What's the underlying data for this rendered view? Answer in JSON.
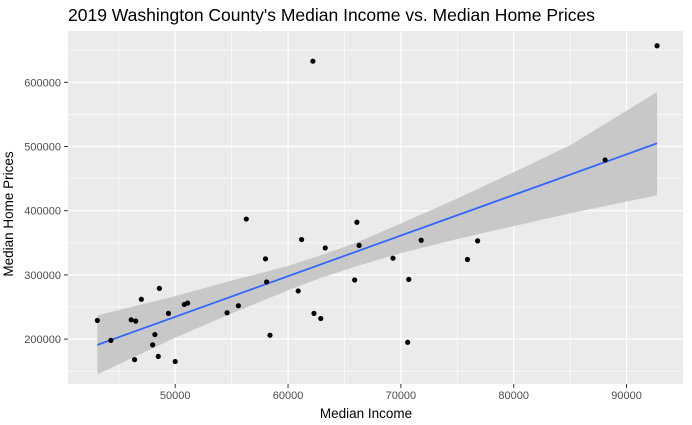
{
  "chart_data": {
    "type": "scatter",
    "title": "2019 Washington County's Median Income vs. Median Home Prices",
    "xlabel": "Median Income",
    "ylabel": "Median Home Prices",
    "xlim": [
      40500,
      95000
    ],
    "ylim": [
      130000,
      680000
    ],
    "x_ticks": [
      50000,
      60000,
      70000,
      80000,
      90000
    ],
    "x_tick_labels": [
      "50000",
      "60000",
      "70000",
      "80000",
      "90000"
    ],
    "y_ticks": [
      200000,
      300000,
      400000,
      500000,
      600000
    ],
    "y_tick_labels": [
      "200000",
      "300000",
      "400000",
      "500000",
      "600000"
    ],
    "grid": true,
    "legend": "none",
    "colors": {
      "panel_background": "#ebebeb",
      "grid_major": "#ffffff",
      "points": "#000000",
      "fit_line": "#3366ff",
      "confidence_band": "#c4c4c4"
    },
    "points": [
      {
        "x": 43100,
        "y": 229000
      },
      {
        "x": 44300,
        "y": 198000
      },
      {
        "x": 46100,
        "y": 230000
      },
      {
        "x": 46500,
        "y": 228000
      },
      {
        "x": 46400,
        "y": 168000
      },
      {
        "x": 47000,
        "y": 262000
      },
      {
        "x": 48000,
        "y": 191000
      },
      {
        "x": 48200,
        "y": 207000
      },
      {
        "x": 48500,
        "y": 173000
      },
      {
        "x": 48600,
        "y": 279000
      },
      {
        "x": 49400,
        "y": 240000
      },
      {
        "x": 50000,
        "y": 165000
      },
      {
        "x": 50800,
        "y": 254000
      },
      {
        "x": 51100,
        "y": 256000
      },
      {
        "x": 54600,
        "y": 241000
      },
      {
        "x": 55600,
        "y": 252000
      },
      {
        "x": 56300,
        "y": 387000
      },
      {
        "x": 58000,
        "y": 325000
      },
      {
        "x": 58100,
        "y": 289000
      },
      {
        "x": 58400,
        "y": 206000
      },
      {
        "x": 60900,
        "y": 275000
      },
      {
        "x": 61200,
        "y": 355000
      },
      {
        "x": 62200,
        "y": 633000
      },
      {
        "x": 62300,
        "y": 240000
      },
      {
        "x": 62900,
        "y": 232000
      },
      {
        "x": 63300,
        "y": 342000
      },
      {
        "x": 65900,
        "y": 292000
      },
      {
        "x": 66100,
        "y": 382000
      },
      {
        "x": 66300,
        "y": 346000
      },
      {
        "x": 69300,
        "y": 326000
      },
      {
        "x": 70600,
        "y": 195000
      },
      {
        "x": 70700,
        "y": 293000
      },
      {
        "x": 71800,
        "y": 354000
      },
      {
        "x": 75900,
        "y": 324000
      },
      {
        "x": 76800,
        "y": 353000
      },
      {
        "x": 88100,
        "y": 479000
      },
      {
        "x": 92700,
        "y": 657000
      }
    ],
    "fit_line": {
      "method": "linear",
      "x": [
        43100,
        92700
      ],
      "y": [
        191000,
        505000
      ]
    },
    "confidence_band": {
      "x": [
        43100,
        50000,
        55000,
        60000,
        63000,
        66000,
        70000,
        75000,
        80000,
        85000,
        92700
      ],
      "lower": [
        145000,
        202000,
        240000,
        276000,
        296000,
        313000,
        334000,
        356000,
        376000,
        396000,
        424000
      ],
      "upper": [
        237000,
        267000,
        291000,
        314000,
        331000,
        350000,
        380000,
        419000,
        460000,
        502000,
        585000
      ]
    }
  }
}
